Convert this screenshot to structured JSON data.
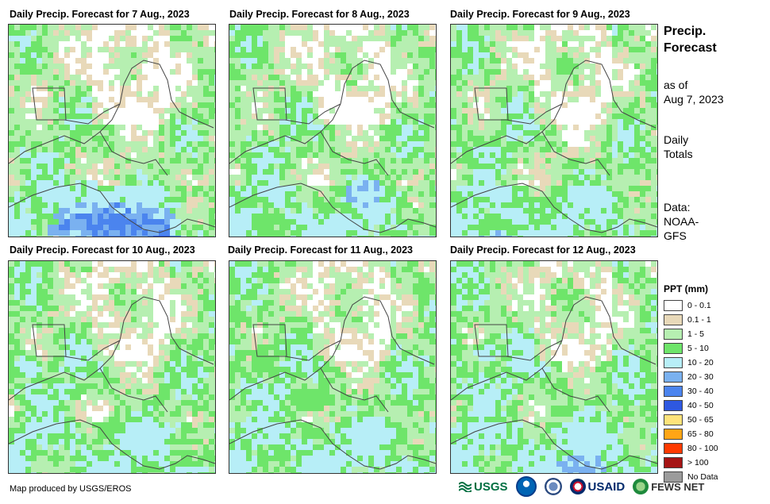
{
  "panels": [
    {
      "title": "Daily Precip. Forecast for 7 Aug., 2023",
      "seed": 7,
      "blobs": [
        [
          130,
          250,
          85,
          32,
          6
        ],
        [
          95,
          220,
          60,
          25,
          4
        ],
        [
          90,
          290,
          12,
          6,
          7
        ],
        [
          190,
          270,
          30,
          12,
          8
        ],
        [
          210,
          275,
          22,
          10,
          9
        ]
      ]
    },
    {
      "title": "Daily Precip. Forecast for 8 Aug., 2023",
      "seed": 8,
      "blobs": [
        [
          165,
          210,
          25,
          20,
          5
        ],
        [
          90,
          255,
          80,
          22,
          3
        ],
        [
          40,
          288,
          30,
          10,
          8
        ],
        [
          55,
          285,
          35,
          12,
          6
        ],
        [
          150,
          245,
          25,
          10,
          4
        ]
      ]
    },
    {
      "title": "Daily Precip. Forecast for 9 Aug., 2023",
      "seed": 9,
      "blobs": [
        [
          55,
          280,
          35,
          22,
          7
        ],
        [
          140,
          230,
          45,
          22,
          3
        ],
        [
          60,
          260,
          50,
          20,
          3
        ]
      ]
    },
    {
      "title": "Daily Precip. Forecast for 10 Aug., 2023",
      "seed": 10,
      "blobs": [
        [
          20,
          430,
          18,
          14,
          4
        ],
        [
          80,
          460,
          15,
          10,
          3
        ],
        [
          130,
          510,
          25,
          15,
          3
        ]
      ]
    },
    {
      "title": "Daily Precip. Forecast for 11 Aug., 2023",
      "seed": 11,
      "blobs": [
        [
          60,
          420,
          35,
          22,
          3
        ],
        [
          100,
          470,
          30,
          15,
          3
        ]
      ]
    },
    {
      "title": "Daily Precip. Forecast for 12 Aug., 2023",
      "seed": 12,
      "blobs": [
        [
          40,
          410,
          18,
          12,
          4
        ],
        [
          160,
          555,
          30,
          16,
          5
        ],
        [
          70,
          585,
          90,
          25,
          3
        ]
      ]
    }
  ],
  "side": {
    "title_line1": "Precip.",
    "title_line2": "Forecast",
    "asof_line1": "as of",
    "asof_line2": "Aug 7, 2023",
    "totals_line1": "Daily",
    "totals_line2": "Totals",
    "data_line1": "Data:",
    "data_line2": "NOAA-",
    "data_line3": "GFS"
  },
  "legend": {
    "title": "PPT (mm)",
    "items": [
      {
        "label": "0 - 0.1",
        "color": "#ffffff"
      },
      {
        "label": "0.1 - 1",
        "color": "#e8d9b9"
      },
      {
        "label": "1 - 5",
        "color": "#b6efb1"
      },
      {
        "label": "5 - 10",
        "color": "#6ee56a"
      },
      {
        "label": "10 - 20",
        "color": "#b7eef7"
      },
      {
        "label": "20 - 30",
        "color": "#7ab1f0"
      },
      {
        "label": "30 - 40",
        "color": "#4b84ee"
      },
      {
        "label": "40 - 50",
        "color": "#2e58e0"
      },
      {
        "label": "50 - 65",
        "color": "#ffe37a"
      },
      {
        "label": "65 - 80",
        "color": "#ffa515"
      },
      {
        "label": "80 - 100",
        "color": "#ff3a00"
      },
      {
        "label": "> 100",
        "color": "#a51414"
      },
      {
        "label": "No Data",
        "color": "#9b9b9b"
      }
    ]
  },
  "credit": "Map produced by USGS/EROS",
  "logos": {
    "usgs": "USGS",
    "usaid": "USAID",
    "fews": "FEWS NET"
  },
  "colors": {
    "usgs": "#006f41",
    "usaid": "#002a6c",
    "fews": "#1e8a3c",
    "noaa": "#0064b4"
  }
}
